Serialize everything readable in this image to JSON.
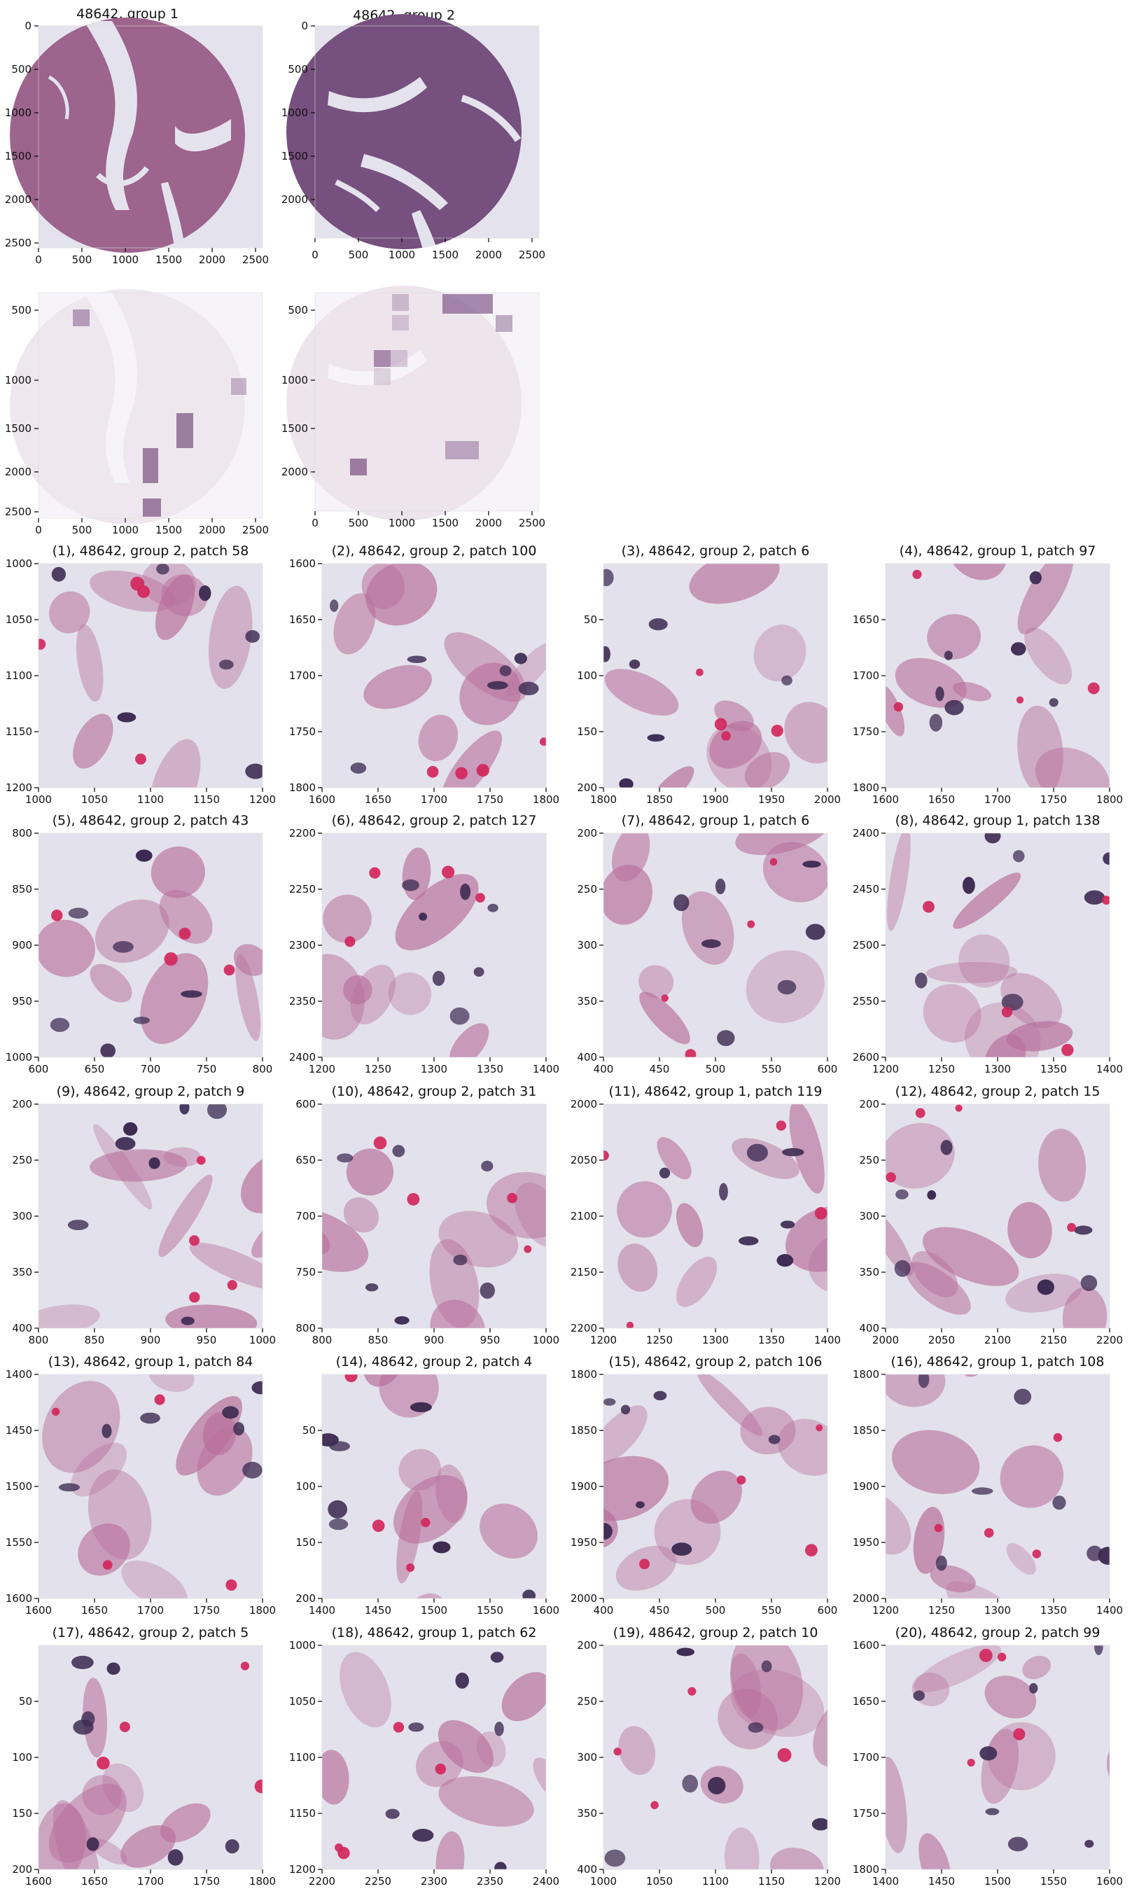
{
  "figure": {
    "colors": {
      "background": "#ffffff",
      "tissue_bg": "#e3e2ec",
      "stroma": "#b86f9b",
      "nuclei": "#3d2b52",
      "rbc": "#d2245a",
      "faded_bg": "#f6f4f8"
    },
    "overviews": [
      {
        "title": "48642, group 1",
        "x_ticks": [
          "0",
          "500",
          "1000",
          "1500",
          "2000",
          "2500"
        ],
        "y_ticks": [
          "0",
          "500",
          "1000",
          "1500",
          "2000",
          "2500"
        ]
      },
      {
        "title": "48642, group 2",
        "x_ticks": [
          "0",
          "500",
          "1000",
          "1500",
          "2000",
          "2500"
        ],
        "y_ticks": [
          "0",
          "500",
          "1000",
          "1500",
          "2000"
        ]
      }
    ],
    "masks": [
      {
        "title": "",
        "x_ticks": [
          "0",
          "500",
          "1000",
          "1500",
          "2000",
          "2500"
        ],
        "y_ticks": [
          "500",
          "1000",
          "1500",
          "2000",
          "2500"
        ]
      },
      {
        "title": "",
        "x_ticks": [
          "0",
          "500",
          "1000",
          "1500",
          "2000",
          "2500"
        ],
        "y_ticks": [
          "500",
          "1000",
          "1500",
          "2000"
        ]
      }
    ],
    "patches": [
      {
        "title": "(1), 48642, group 2, patch 58",
        "x_ticks": [
          "1000",
          "1050",
          "1100",
          "1150",
          "1200"
        ],
        "y_ticks": [
          "1000",
          "1050",
          "1100",
          "1150",
          "1200"
        ]
      },
      {
        "title": "(2), 48642, group 2, patch 100",
        "x_ticks": [
          "1600",
          "1650",
          "1700",
          "1750",
          "1800"
        ],
        "y_ticks": [
          "1600",
          "1650",
          "1700",
          "1750",
          "1800"
        ]
      },
      {
        "title": "(3), 48642, group 2, patch 6",
        "x_ticks": [
          "1800",
          "1850",
          "1900",
          "1950",
          "2000"
        ],
        "y_ticks": [
          "50",
          "100",
          "150",
          "200"
        ]
      },
      {
        "title": "(4), 48642, group 1, patch 97",
        "x_ticks": [
          "1600",
          "1650",
          "1700",
          "1750",
          "1800"
        ],
        "y_ticks": [
          "1650",
          "1700",
          "1750",
          "1800"
        ]
      },
      {
        "title": "(5), 48642, group 2, patch 43",
        "x_ticks": [
          "600",
          "650",
          "700",
          "750",
          "800"
        ],
        "y_ticks": [
          "800",
          "850",
          "900",
          "950",
          "1000"
        ]
      },
      {
        "title": "(6), 48642, group 2, patch 127",
        "x_ticks": [
          "1200",
          "1250",
          "1300",
          "1350",
          "1400"
        ],
        "y_ticks": [
          "2200",
          "2250",
          "2300",
          "2350",
          "2400"
        ]
      },
      {
        "title": "(7), 48642, group 1, patch 6",
        "x_ticks": [
          "400",
          "450",
          "500",
          "550",
          "600"
        ],
        "y_ticks": [
          "200",
          "250",
          "300",
          "350",
          "400"
        ]
      },
      {
        "title": "(8), 48642, group 1, patch 138",
        "x_ticks": [
          "1200",
          "1250",
          "1300",
          "1350",
          "1400"
        ],
        "y_ticks": [
          "2400",
          "2450",
          "2500",
          "2550",
          "2600"
        ]
      },
      {
        "title": "(9), 48642, group 2, patch 9",
        "x_ticks": [
          "800",
          "850",
          "900",
          "950",
          "1000"
        ],
        "y_ticks": [
          "200",
          "250",
          "300",
          "350",
          "400"
        ]
      },
      {
        "title": "(10), 48642, group 2, patch 31",
        "x_ticks": [
          "800",
          "850",
          "900",
          "950",
          "1000"
        ],
        "y_ticks": [
          "600",
          "650",
          "700",
          "750",
          "800"
        ]
      },
      {
        "title": "(11), 48642, group 1, patch 119",
        "x_ticks": [
          "1200",
          "1250",
          "1300",
          "1350",
          "1400"
        ],
        "y_ticks": [
          "2000",
          "2050",
          "2100",
          "2150",
          "2200"
        ]
      },
      {
        "title": "(12), 48642, group 2, patch 15",
        "x_ticks": [
          "2000",
          "2050",
          "2100",
          "2150",
          "2200"
        ],
        "y_ticks": [
          "200",
          "250",
          "300",
          "350",
          "400"
        ]
      },
      {
        "title": "(13), 48642, group 1, patch 84",
        "x_ticks": [
          "1600",
          "1650",
          "1700",
          "1750",
          "1800"
        ],
        "y_ticks": [
          "1400",
          "1450",
          "1500",
          "1550",
          "1600"
        ]
      },
      {
        "title": "(14), 48642, group 2, patch 4",
        "x_ticks": [
          "1400",
          "1450",
          "1500",
          "1550",
          "1600"
        ],
        "y_ticks": [
          "50",
          "100",
          "150",
          "200"
        ]
      },
      {
        "title": "(15), 48642, group 2, patch 106",
        "x_ticks": [
          "400",
          "450",
          "500",
          "550",
          "600"
        ],
        "y_ticks": [
          "1800",
          "1850",
          "1900",
          "1950",
          "2000"
        ]
      },
      {
        "title": "(16), 48642, group 1, patch 108",
        "x_ticks": [
          "1200",
          "1250",
          "1300",
          "1350",
          "1400"
        ],
        "y_ticks": [
          "1800",
          "1850",
          "1900",
          "1950",
          "2000"
        ]
      },
      {
        "title": "(17), 48642, group 2, patch 5",
        "x_ticks": [
          "1600",
          "1650",
          "1700",
          "1750",
          "1800"
        ],
        "y_ticks": [
          "50",
          "100",
          "150",
          "200"
        ]
      },
      {
        "title": "(18), 48642, group 1, patch 62",
        "x_ticks": [
          "2200",
          "2250",
          "2300",
          "2350",
          "2400"
        ],
        "y_ticks": [
          "1000",
          "1050",
          "1100",
          "1150",
          "1200"
        ]
      },
      {
        "title": "(19), 48642, group 2, patch 10",
        "x_ticks": [
          "1000",
          "1050",
          "1100",
          "1150",
          "1200"
        ],
        "y_ticks": [
          "200",
          "250",
          "300",
          "350",
          "400"
        ]
      },
      {
        "title": "(20), 48642, group 2, patch 99",
        "x_ticks": [
          "1400",
          "1450",
          "1500",
          "1550",
          "1600"
        ],
        "y_ticks": [
          "1600",
          "1650",
          "1700",
          "1750",
          "1800"
        ]
      }
    ]
  }
}
